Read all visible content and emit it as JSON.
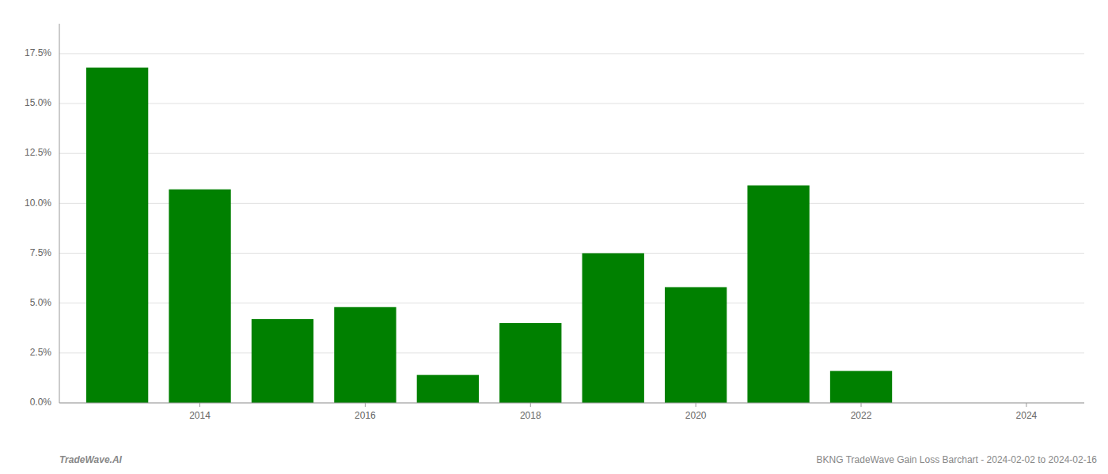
{
  "chart_data": {
    "type": "bar",
    "x": [
      2013,
      2014,
      2015,
      2016,
      2017,
      2018,
      2019,
      2020,
      2021,
      2022,
      2023
    ],
    "values": [
      0.168,
      0.107,
      0.042,
      0.048,
      0.014,
      0.04,
      0.075,
      0.058,
      0.109,
      0.016,
      0.0
    ],
    "color": "#008000",
    "xlim": [
      2012.3,
      2024.7
    ],
    "xticks": [
      2014,
      2016,
      2018,
      2020,
      2022,
      2024
    ],
    "ylim": [
      0,
      0.19
    ],
    "yticks": [
      {
        "value": 0.0,
        "label": "0.0%"
      },
      {
        "value": 0.025,
        "label": "2.5%"
      },
      {
        "value": 0.05,
        "label": "5.0%"
      },
      {
        "value": 0.075,
        "label": "7.5%"
      },
      {
        "value": 0.1,
        "label": "10.0%"
      },
      {
        "value": 0.125,
        "label": "12.5%"
      },
      {
        "value": 0.15,
        "label": "15.0%"
      },
      {
        "value": 0.175,
        "label": "17.5%"
      }
    ],
    "grid": true,
    "annotations": [
      "TradeWave.AI",
      "BKNG TradeWave Gain Loss Barchart - 2024-02-02 to 2024-02-16"
    ]
  }
}
